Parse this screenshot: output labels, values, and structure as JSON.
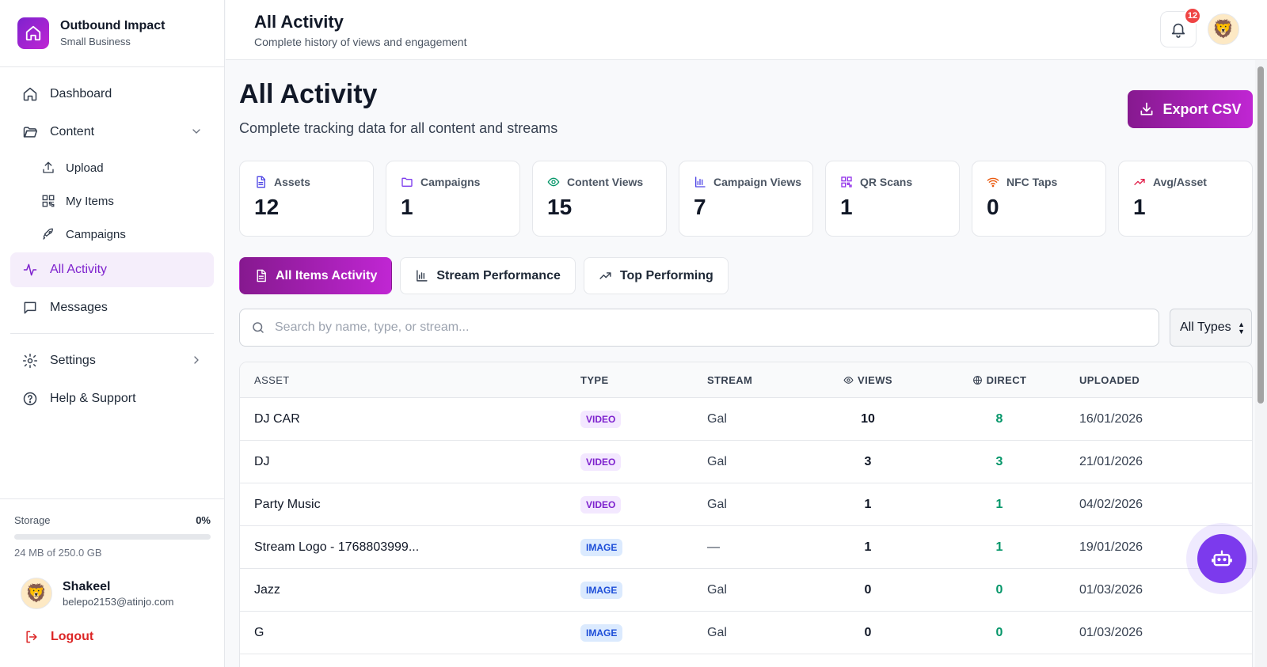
{
  "brand": {
    "name": "Outbound Impact",
    "plan": "Small Business"
  },
  "sidebar": {
    "dashboard": "Dashboard",
    "content": "Content",
    "upload": "Upload",
    "my_items": "My Items",
    "campaigns": "Campaigns",
    "all_activity": "All Activity",
    "messages": "Messages",
    "settings": "Settings",
    "help": "Help & Support"
  },
  "storage": {
    "label": "Storage",
    "percent_label": "0%",
    "percent": 0,
    "used": "24 MB of 250.0 GB"
  },
  "user": {
    "name": "Shakeel",
    "email": "belepo2153@atinjo.com",
    "logout": "Logout"
  },
  "header": {
    "title": "All Activity",
    "subtitle": "Complete history of views and engagement",
    "notifications": "12"
  },
  "main": {
    "title": "All Activity",
    "subtitle": "Complete tracking data for all content and streams",
    "export_label": "Export CSV"
  },
  "stats": [
    {
      "label": "Assets",
      "value": "12",
      "icon": "document-icon"
    },
    {
      "label": "Campaigns",
      "value": "1",
      "icon": "folder-icon"
    },
    {
      "label": "Content Views",
      "value": "15",
      "icon": "eye-icon"
    },
    {
      "label": "Campaign Views",
      "value": "7",
      "icon": "bar-chart-icon"
    },
    {
      "label": "QR Scans",
      "value": "1",
      "icon": "qr-code-icon"
    },
    {
      "label": "NFC Taps",
      "value": "0",
      "icon": "wifi-icon"
    },
    {
      "label": "Avg/Asset",
      "value": "1",
      "icon": "trending-up-icon"
    }
  ],
  "tabs": {
    "all_items": "All Items Activity",
    "stream_performance": "Stream Performance",
    "top_performing": "Top Performing"
  },
  "search": {
    "placeholder": "Search by name, type, or stream...",
    "value": ""
  },
  "filter": {
    "selected": "All Types"
  },
  "table": {
    "headers": {
      "asset": "ASSET",
      "type": "TYPE",
      "stream": "STREAM",
      "views": "VIEWS",
      "direct": "DIRECT",
      "uploaded": "UPLOADED"
    },
    "rows": [
      {
        "asset": "DJ CAR",
        "type": "VIDEO",
        "stream": "Gal",
        "views": "10",
        "direct": "8",
        "uploaded": "16/01/2026"
      },
      {
        "asset": "DJ",
        "type": "VIDEO",
        "stream": "Gal",
        "views": "3",
        "direct": "3",
        "uploaded": "21/01/2026"
      },
      {
        "asset": "Party Music",
        "type": "VIDEO",
        "stream": "Gal",
        "views": "1",
        "direct": "1",
        "uploaded": "04/02/2026"
      },
      {
        "asset": "Stream Logo - 1768803999...",
        "type": "IMAGE",
        "stream": "—",
        "views": "1",
        "direct": "1",
        "uploaded": "19/01/2026"
      },
      {
        "asset": "Jazz",
        "type": "IMAGE",
        "stream": "Gal",
        "views": "0",
        "direct": "0",
        "uploaded": "01/03/2026"
      },
      {
        "asset": "G",
        "type": "IMAGE",
        "stream": "Gal",
        "views": "0",
        "direct": "0",
        "uploaded": "01/03/2026"
      }
    ]
  },
  "colors": {
    "accent": "#86198f",
    "accent_light": "#c026d3",
    "active_bg": "#f5eefb",
    "success": "#059669",
    "danger": "#dc2626"
  }
}
